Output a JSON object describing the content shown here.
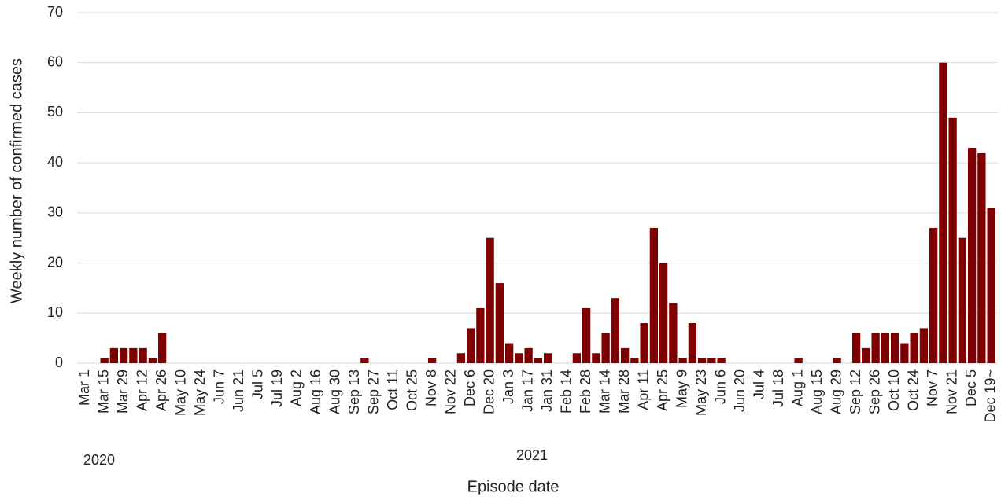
{
  "chart_data": {
    "type": "bar",
    "x_label": "Episode date",
    "y_label": "Weekly number of confirmed cases",
    "annotations": [
      "2020",
      "2021"
    ],
    "categories": [
      "Mar 1",
      null,
      "Mar 15",
      null,
      "Mar 29",
      null,
      "Apr 12",
      null,
      "Apr 26",
      null,
      "May 10",
      null,
      "May 24",
      null,
      "Jun 7",
      null,
      "Jun 21",
      null,
      "Jul 5",
      null,
      "Jul 19",
      null,
      "Aug 2",
      null,
      "Aug 16",
      null,
      "Aug 30",
      null,
      "Sep 13",
      null,
      "Sep 27",
      null,
      "Oct 11",
      null,
      "Oct 25",
      null,
      "Nov 8",
      null,
      "Nov 22",
      null,
      "Dec 6",
      null,
      "Dec 20",
      null,
      "Jan 3",
      null,
      "Jan 17",
      null,
      "Jan 31",
      null,
      "Feb 14",
      null,
      "Feb 28",
      null,
      "Mar 14",
      null,
      "Mar 28",
      null,
      "Apr 11",
      null,
      "Apr 25",
      null,
      "May 9",
      null,
      "May 23",
      null,
      "Jun 6",
      null,
      "Jun 20",
      null,
      "Jul 4",
      null,
      "Jul 18",
      null,
      "Aug 1",
      null,
      "Aug 15",
      null,
      "Aug 29",
      null,
      "Sep 12",
      null,
      "Sep 26",
      null,
      "Oct 10",
      null,
      "Oct 24",
      null,
      "Nov 7",
      null,
      "Nov 21",
      null,
      "Dec 5",
      null,
      "Dec 19~"
    ],
    "values": [
      0,
      0,
      1,
      3,
      3,
      3,
      3,
      1,
      6,
      0,
      0,
      0,
      0,
      0,
      0,
      0,
      0,
      0,
      0,
      0,
      0,
      0,
      0,
      0,
      0,
      0,
      0,
      0,
      0,
      1,
      0,
      0,
      0,
      0,
      0,
      0,
      1,
      0,
      0,
      2,
      7,
      11,
      25,
      16,
      4,
      2,
      3,
      1,
      2,
      0,
      0,
      2,
      11,
      2,
      6,
      13,
      3,
      1,
      8,
      27,
      20,
      12,
      1,
      8,
      1,
      1,
      1,
      0,
      0,
      0,
      0,
      0,
      0,
      0,
      1,
      0,
      0,
      0,
      1,
      0,
      6,
      3,
      6,
      6,
      6,
      4,
      6,
      7,
      27,
      60,
      49,
      25,
      43,
      42,
      31
    ],
    "color": "#7f0000",
    "ylim": [
      0,
      70
    ],
    "yticks": [
      0,
      10,
      20,
      30,
      40,
      50,
      60,
      70
    ],
    "grid": true
  }
}
